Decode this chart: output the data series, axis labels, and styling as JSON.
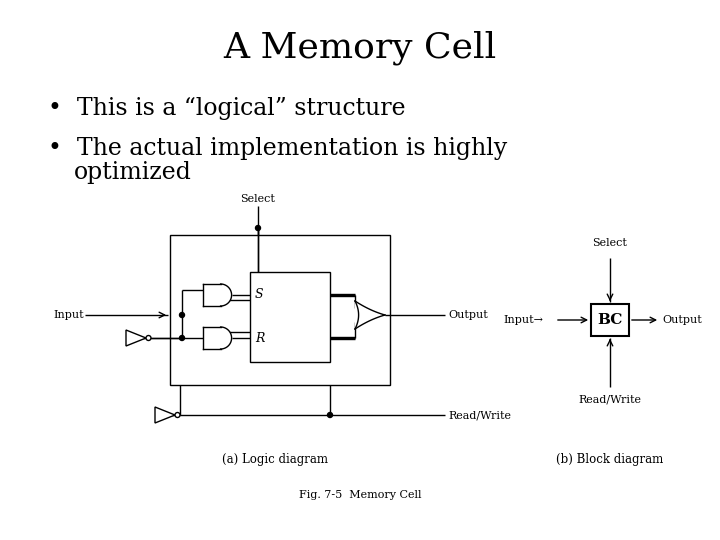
{
  "title": "A Memory Cell",
  "bullet1": "This is a “logical” structure",
  "bullet2_line1": "The actual implementation is highly",
  "bullet2_line2": "optimized",
  "caption_a": "(a) Logic diagram",
  "caption_b": "(b) Block diagram",
  "fig_caption": "Fig. 7-5  Memory Cell",
  "bg_color": "#ffffff",
  "text_color": "#000000",
  "title_fontsize": 26,
  "bullet_fontsize": 17,
  "small_fontsize": 8,
  "label_fontsize": 8
}
